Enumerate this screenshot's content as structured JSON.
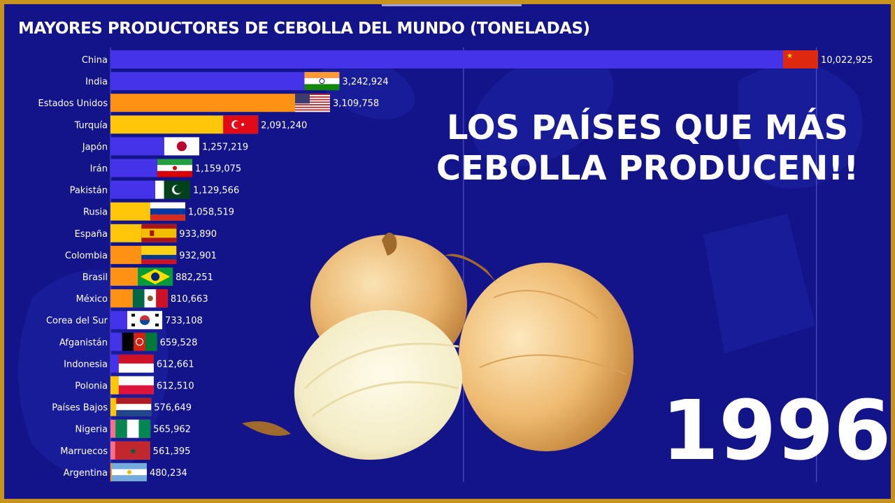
{
  "title": "MAYORES PRODUCTORES DE CEBOLLA DEL MUNDO (TONELADAS)",
  "headline": {
    "line1": "LOS PAÍSES QUE MÁS",
    "line2": "CEBOLLA PRODUCEN!!"
  },
  "year": "1996",
  "colors": {
    "background": "#13138a",
    "frame": "#c8921e",
    "asia": "#4433e8",
    "americas": "#ff9215",
    "europe": "#ffc60a",
    "africa": "#f76f90"
  },
  "chart_data": {
    "type": "bar",
    "orientation": "horizontal",
    "title": "MAYORES PRODUCTORES DE CEBOLLA DEL MUNDO (TONELADAS)",
    "xlim": [
      0,
      10022925
    ],
    "grid": true,
    "categories": [
      "China",
      "India",
      "Estados Unidos",
      "Turquía",
      "Japón",
      "Irán",
      "Pakistán",
      "Rusia",
      "España",
      "Colombia",
      "Brasil",
      "México",
      "Corea del Sur",
      "Afganistán",
      "Indonesia",
      "Polonia",
      "Países Bajos",
      "Nigeria",
      "Marruecos",
      "Argentina"
    ],
    "values": [
      10022925,
      3242924,
      3109758,
      2091240,
      1257219,
      1159075,
      1129566,
      1058519,
      933890,
      932901,
      882251,
      810663,
      733108,
      659528,
      612661,
      612510,
      576649,
      565962,
      561395,
      480234
    ],
    "value_labels": [
      "10,022,925",
      "3,242,924",
      "3,109,758",
      "2,091,240",
      "1,257,219",
      "1,159,075",
      "1,129,566",
      "1,058,519",
      "933,890",
      "932,901",
      "882,251",
      "810,663",
      "733,108",
      "659,528",
      "612,661",
      "612,510",
      "576,649",
      "565,962",
      "561,395",
      "480,234"
    ],
    "bar_colors": [
      "#4433e8",
      "#4433e8",
      "#ff9215",
      "#ffc60a",
      "#4433e8",
      "#4433e8",
      "#4433e8",
      "#ffc60a",
      "#ffc60a",
      "#ff9215",
      "#ff9215",
      "#ff9215",
      "#4433e8",
      "#4433e8",
      "#4433e8",
      "#ffc60a",
      "#ffc60a",
      "#f76f90",
      "#f76f90",
      "#ff9215"
    ],
    "flags": [
      "china-flag-icon",
      "india-flag-icon",
      "usa-flag-icon",
      "turkey-flag-icon",
      "japan-flag-icon",
      "iran-flag-icon",
      "pakistan-flag-icon",
      "russia-flag-icon",
      "spain-flag-icon",
      "colombia-flag-icon",
      "brazil-flag-icon",
      "mexico-flag-icon",
      "south-korea-flag-icon",
      "afghanistan-flag-icon",
      "indonesia-flag-icon",
      "poland-flag-icon",
      "netherlands-flag-icon",
      "nigeria-flag-icon",
      "morocco-flag-icon",
      "argentina-flag-icon"
    ]
  }
}
